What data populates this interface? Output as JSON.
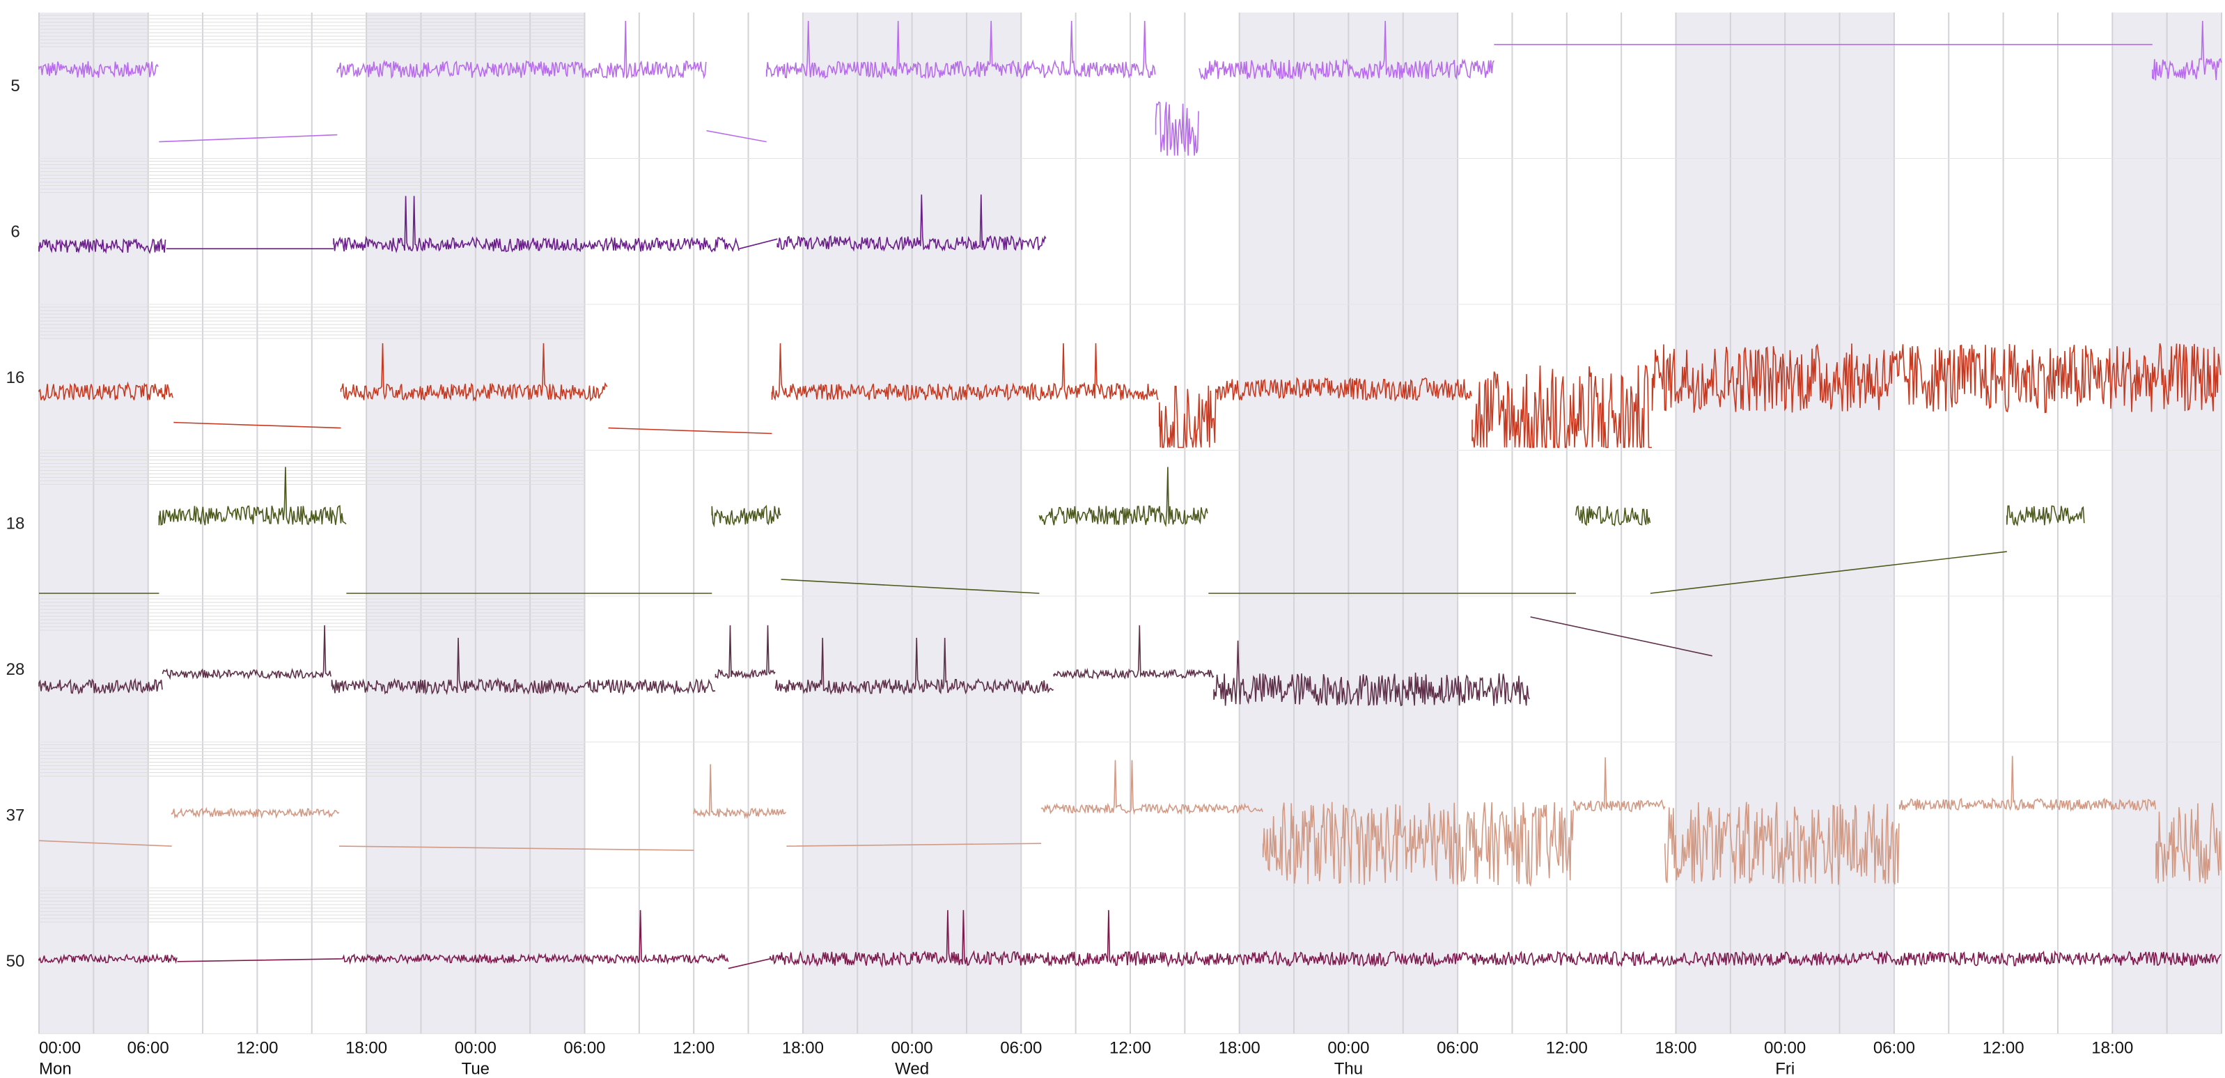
{
  "chart_data": {
    "type": "line",
    "title": "",
    "xlabel": "",
    "ylabel": "",
    "grid": true,
    "legend": "none",
    "x_unit": "hours since Mon 00:00",
    "x_range": [
      0,
      120
    ],
    "x_ticks": [
      {
        "t": 0,
        "label": "00:00"
      },
      {
        "t": 6,
        "label": "06:00"
      },
      {
        "t": 12,
        "label": "12:00"
      },
      {
        "t": 18,
        "label": "18:00"
      },
      {
        "t": 24,
        "label": "00:00"
      },
      {
        "t": 30,
        "label": "06:00"
      },
      {
        "t": 36,
        "label": "12:00"
      },
      {
        "t": 42,
        "label": "18:00"
      },
      {
        "t": 48,
        "label": "00:00"
      },
      {
        "t": 54,
        "label": "06:00"
      },
      {
        "t": 60,
        "label": "12:00"
      },
      {
        "t": 66,
        "label": "18:00"
      },
      {
        "t": 72,
        "label": "00:00"
      },
      {
        "t": 78,
        "label": "06:00"
      },
      {
        "t": 84,
        "label": "12:00"
      },
      {
        "t": 90,
        "label": "18:00"
      },
      {
        "t": 96,
        "label": "00:00"
      },
      {
        "t": 102,
        "label": "06:00"
      },
      {
        "t": 108,
        "label": "12:00"
      },
      {
        "t": 114,
        "label": "18:00"
      }
    ],
    "day_labels": [
      {
        "t": 0,
        "label": "Mon"
      },
      {
        "t": 24,
        "label": "Tue"
      },
      {
        "t": 48,
        "label": "Wed"
      },
      {
        "t": 72,
        "label": "Thu"
      },
      {
        "t": 96,
        "label": "Fri"
      }
    ],
    "shaded_periods": [
      [
        0,
        6
      ],
      [
        18,
        30
      ],
      [
        42,
        54
      ],
      [
        66,
        78
      ],
      [
        90,
        102
      ],
      [
        114,
        120
      ]
    ],
    "series": [
      {
        "name": "5",
        "color": "#b86bec",
        "segments": [
          {
            "t0": 0,
            "t1": 6.6,
            "level": 0.62,
            "noise": 0.06
          },
          {
            "t0": 6.6,
            "t1": 16.4,
            "level": 0.1,
            "noise": 0,
            "ramp_to": 0.15
          },
          {
            "t0": 16.4,
            "t1": 36.7,
            "level": 0.62,
            "noise": 0.06
          },
          {
            "t0": 36.7,
            "t1": 40,
            "level": 0.18,
            "noise": 0,
            "ramp_to": 0.1
          },
          {
            "t0": 40,
            "t1": 61.4,
            "level": 0.62,
            "noise": 0.06
          },
          {
            "t0": 61.4,
            "t1": 63.8,
            "level": 0.15,
            "noise": 0.25
          },
          {
            "t0": 63.8,
            "t1": 80.0,
            "level": 0.62,
            "noise": 0.07
          },
          {
            "t0": 80.0,
            "t1": 116.2,
            "level": 0.8,
            "noise": 0,
            "ramp_to": 0.8
          },
          {
            "t0": 116.2,
            "t1": 120,
            "level": 0.62,
            "noise": 0.08
          }
        ]
      },
      {
        "name": "6",
        "color": "#6b1d8c",
        "segments": [
          {
            "t0": 0,
            "t1": 7.0,
            "level": 0.4,
            "noise": 0.05
          },
          {
            "t0": 7.0,
            "t1": 16.2,
            "level": 0.38,
            "noise": 0,
            "ramp_to": 0.38
          },
          {
            "t0": 16.2,
            "t1": 38.5,
            "level": 0.41,
            "noise": 0.05
          },
          {
            "t0": 38.5,
            "t1": 40.6,
            "level": 0.38,
            "noise": 0,
            "ramp_to": 0.45
          },
          {
            "t0": 40.6,
            "t1": 55.4,
            "level": 0.42,
            "noise": 0.05
          }
        ]
      },
      {
        "name": "16",
        "color": "#c63a22",
        "segments": [
          {
            "t0": 0,
            "t1": 7.4,
            "level": 0.4,
            "noise": 0.06
          },
          {
            "t0": 7.4,
            "t1": 16.6,
            "level": 0.18,
            "noise": 0,
            "ramp_to": 0.14
          },
          {
            "t0": 16.6,
            "t1": 31.3,
            "level": 0.4,
            "noise": 0.06
          },
          {
            "t0": 31.3,
            "t1": 40.3,
            "level": 0.14,
            "noise": 0,
            "ramp_to": 0.1
          },
          {
            "t0": 40.3,
            "t1": 61.6,
            "level": 0.4,
            "noise": 0.06
          },
          {
            "t0": 61.6,
            "t1": 64.8,
            "level": 0.15,
            "noise": 0.3
          },
          {
            "t0": 64.8,
            "t1": 78.8,
            "level": 0.42,
            "noise": 0.08
          },
          {
            "t0": 78.8,
            "t1": 88.7,
            "level": 0.2,
            "noise": 0.4
          },
          {
            "t0": 88.7,
            "t1": 120,
            "level": 0.5,
            "noise": 0.25
          }
        ]
      },
      {
        "name": "18",
        "color": "#4b5a1c",
        "segments": [
          {
            "t0": 0,
            "t1": 6.6,
            "level": 0.0,
            "noise": 0
          },
          {
            "t0": 6.6,
            "t1": 16.9,
            "level": 0.56,
            "noise": 0.07
          },
          {
            "t0": 16.9,
            "t1": 37.0,
            "level": 0.0,
            "noise": 0
          },
          {
            "t0": 37.0,
            "t1": 40.8,
            "level": 0.56,
            "noise": 0.07
          },
          {
            "t0": 40.8,
            "t1": 55.0,
            "level": 0.1,
            "noise": 0,
            "ramp_to": 0.0
          },
          {
            "t0": 55.0,
            "t1": 64.3,
            "level": 0.56,
            "noise": 0.07
          },
          {
            "t0": 64.3,
            "t1": 84.5,
            "level": 0.0,
            "noise": 0
          },
          {
            "t0": 84.5,
            "t1": 88.6,
            "level": 0.56,
            "noise": 0.07
          },
          {
            "t0": 88.6,
            "t1": 108.2,
            "level": 0.0,
            "noise": 0,
            "ramp_to": 0.3
          },
          {
            "t0": 108.2,
            "t1": 112.5,
            "level": 0.56,
            "noise": 0.07
          }
        ]
      },
      {
        "name": "28",
        "color": "#5e3049",
        "segments": [
          {
            "t0": 0,
            "t1": 6.8,
            "level": 0.38,
            "noise": 0.05
          },
          {
            "t0": 6.8,
            "t1": 16.1,
            "level": 0.47,
            "noise": 0.03
          },
          {
            "t0": 16.1,
            "t1": 37.2,
            "level": 0.38,
            "noise": 0.05
          },
          {
            "t0": 37.2,
            "t1": 40.5,
            "level": 0.47,
            "noise": 0.03
          },
          {
            "t0": 40.5,
            "t1": 55.8,
            "level": 0.38,
            "noise": 0.05
          },
          {
            "t0": 55.8,
            "t1": 64.6,
            "level": 0.47,
            "noise": 0.03
          },
          {
            "t0": 64.6,
            "t1": 82.0,
            "level": 0.36,
            "noise": 0.12
          },
          {
            "t0": 82.0,
            "t1": 92.0,
            "level": 0.88,
            "noise": 0,
            "ramp_to": 0.6
          }
        ]
      },
      {
        "name": "37",
        "color": "#d29a84",
        "segments": [
          {
            "t0": 0,
            "t1": 7.3,
            "level": 0.32,
            "noise": 0,
            "ramp_to": 0.28
          },
          {
            "t0": 7.3,
            "t1": 16.5,
            "level": 0.52,
            "noise": 0.03
          },
          {
            "t0": 16.5,
            "t1": 36.0,
            "level": 0.28,
            "noise": 0,
            "ramp_to": 0.25
          },
          {
            "t0": 36.0,
            "t1": 41.1,
            "level": 0.52,
            "noise": 0.03
          },
          {
            "t0": 41.1,
            "t1": 55.1,
            "level": 0.28,
            "noise": 0,
            "ramp_to": 0.3
          },
          {
            "t0": 55.1,
            "t1": 67.3,
            "level": 0.55,
            "noise": 0.03
          },
          {
            "t0": 67.3,
            "t1": 84.4,
            "level": 0.3,
            "noise": 0.3
          },
          {
            "t0": 84.4,
            "t1": 89.4,
            "level": 0.57,
            "noise": 0.04
          },
          {
            "t0": 89.4,
            "t1": 102.3,
            "level": 0.3,
            "noise": 0.3
          },
          {
            "t0": 102.3,
            "t1": 116.4,
            "level": 0.58,
            "noise": 0.04
          },
          {
            "t0": 116.4,
            "t1": 120,
            "level": 0.3,
            "noise": 0.3
          }
        ]
      },
      {
        "name": "50",
        "color": "#7e1a4e",
        "segments": [
          {
            "t0": 0,
            "t1": 7.6,
            "level": 0.52,
            "noise": 0.03
          },
          {
            "t0": 7.6,
            "t1": 16.7,
            "level": 0.5,
            "noise": 0,
            "ramp_to": 0.52
          },
          {
            "t0": 16.7,
            "t1": 37.9,
            "level": 0.52,
            "noise": 0.03
          },
          {
            "t0": 37.9,
            "t1": 40.2,
            "level": 0.45,
            "noise": 0,
            "ramp_to": 0.52
          },
          {
            "t0": 40.2,
            "t1": 120,
            "level": 0.52,
            "noise": 0.05
          }
        ]
      }
    ]
  }
}
